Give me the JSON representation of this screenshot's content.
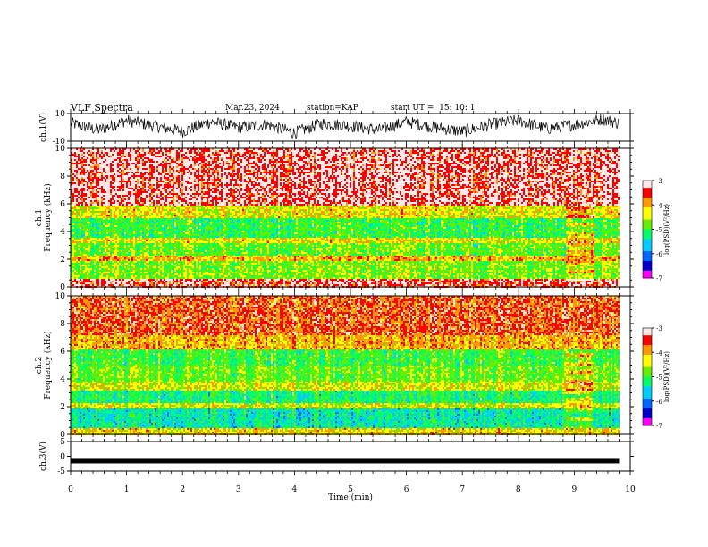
{
  "header": {
    "title": "VLF Spectra",
    "date": "Mar.23, 2024",
    "station": "station=KAP",
    "start": "start UT =  15: 10: 1"
  },
  "colors": {
    "scale": [
      "#ff00ff",
      "#0000cc",
      "#0066ff",
      "#00ccff",
      "#00ff66",
      "#66ee00",
      "#ffff00",
      "#ff9900",
      "#ff0000",
      "#ffe8e8"
    ],
    "trace": "#000000"
  },
  "chart_data": [
    {
      "type": "line",
      "name": "ch1-waveform",
      "ylabel": "ch.1(V)",
      "ylim": [
        -10,
        10
      ],
      "yticks": [
        "10",
        "-10"
      ],
      "x": [
        0,
        0.5,
        1,
        1.5,
        2,
        2.5,
        3,
        3.5,
        4,
        4.5,
        5,
        5.5,
        6,
        6.5,
        7,
        7.5,
        8,
        8.5,
        9,
        9.5,
        9.8
      ],
      "y": [
        3,
        -2,
        5,
        1,
        -3,
        4,
        0,
        2,
        -4,
        3,
        1,
        -2,
        4,
        0,
        -3,
        2,
        5,
        -1,
        2,
        6,
        3
      ],
      "xlim": [
        0,
        10
      ]
    },
    {
      "type": "heatmap",
      "name": "ch1-spectrogram",
      "ylabel": "ch.1\nFrequency (kHz)",
      "ylim": [
        0,
        10
      ],
      "yticks": [
        "0",
        "2",
        "4",
        "6",
        "8",
        "10"
      ],
      "xlim": [
        0,
        10
      ],
      "colorbar": {
        "label": "log(PSD)(V²/Hz)",
        "ticks": [
          "-3",
          "-4",
          "-5",
          "-6",
          "-7"
        ],
        "range": [
          -7,
          -3
        ]
      },
      "bands": [
        {
          "f": [
            0,
            0.6
          ],
          "level": -3.3
        },
        {
          "f": [
            0.6,
            2.0
          ],
          "level": -4.7
        },
        {
          "f": [
            2.0,
            2.3
          ],
          "level": -4.0
        },
        {
          "f": [
            2.3,
            3.2
          ],
          "level": -4.8
        },
        {
          "f": [
            3.2,
            3.6
          ],
          "level": -4.3
        },
        {
          "f": [
            3.6,
            5.0
          ],
          "level": -5.0
        },
        {
          "f": [
            5.0,
            6.0
          ],
          "level": -4.3
        },
        {
          "f": [
            6.0,
            10.0
          ],
          "level": -3.2
        }
      ]
    },
    {
      "type": "heatmap",
      "name": "ch2-spectrogram",
      "ylabel": "ch.2\nFrequency (kHz)",
      "ylim": [
        0,
        10
      ],
      "yticks": [
        "0",
        "2",
        "4",
        "6",
        "8",
        "10"
      ],
      "xlim": [
        0,
        10
      ],
      "colorbar": {
        "label": "log(PSD)(V²/Hz)",
        "ticks": [
          "-3",
          "-4",
          "-5",
          "-6",
          "-7"
        ],
        "range": [
          -7,
          -3
        ]
      },
      "bands": [
        {
          "f": [
            0,
            0.5
          ],
          "level": -4.2
        },
        {
          "f": [
            0.5,
            2.0
          ],
          "level": -5.4
        },
        {
          "f": [
            2.0,
            2.3
          ],
          "level": -4.4
        },
        {
          "f": [
            2.3,
            3.2
          ],
          "level": -5.2
        },
        {
          "f": [
            3.2,
            3.9
          ],
          "level": -4.4
        },
        {
          "f": [
            3.9,
            5.0
          ],
          "level": -4.8
        },
        {
          "f": [
            5.0,
            6.2
          ],
          "level": -5.0
        },
        {
          "f": [
            6.2,
            7.2
          ],
          "level": -4.0
        },
        {
          "f": [
            7.2,
            10.0
          ],
          "level": -3.6
        }
      ]
    },
    {
      "type": "line",
      "name": "ch3-waveform",
      "ylabel": "ch.3(V)",
      "ylim": [
        -5,
        5
      ],
      "yticks": [
        "5",
        "0",
        "-5"
      ],
      "x": [
        0,
        9.8
      ],
      "y": [
        -1.5,
        -1.5
      ],
      "xlim": [
        0,
        10
      ]
    }
  ],
  "xaxis": {
    "label": "Time (min)",
    "ticks": [
      "0",
      "1",
      "2",
      "3",
      "4",
      "5",
      "6",
      "7",
      "8",
      "9",
      "10"
    ]
  }
}
